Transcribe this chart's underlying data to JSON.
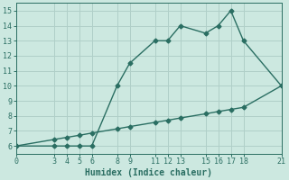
{
  "xlabel": "Humidex (Indice chaleur)",
  "bg_color": "#cce8e0",
  "grid_color": "#b0cfc8",
  "line_color": "#2a6e62",
  "xlim": [
    0,
    21
  ],
  "ylim": [
    5.5,
    15.5
  ],
  "xticks": [
    0,
    3,
    4,
    5,
    6,
    8,
    9,
    11,
    12,
    13,
    15,
    16,
    17,
    18,
    21
  ],
  "yticks": [
    6,
    7,
    8,
    9,
    10,
    11,
    12,
    13,
    14,
    15
  ],
  "curve1_x": [
    0,
    3,
    4,
    5,
    6,
    8,
    9,
    11,
    12,
    13,
    15,
    16,
    17,
    18,
    21
  ],
  "curve1_y": [
    6,
    6,
    6,
    6,
    6,
    10,
    11.5,
    13,
    13,
    14,
    13.5,
    14,
    15,
    13,
    10
  ],
  "curve2_x": [
    0,
    3,
    4,
    5,
    6,
    8,
    9,
    11,
    12,
    13,
    15,
    16,
    17,
    18,
    21
  ],
  "curve2_y": [
    6,
    6.43,
    6.57,
    6.71,
    6.86,
    7.14,
    7.29,
    7.57,
    7.71,
    7.86,
    8.14,
    8.29,
    8.43,
    8.57,
    10.0
  ],
  "marker": "D",
  "marker_size": 2.5,
  "line_width": 1.0,
  "tick_fontsize": 6,
  "label_fontsize": 7
}
